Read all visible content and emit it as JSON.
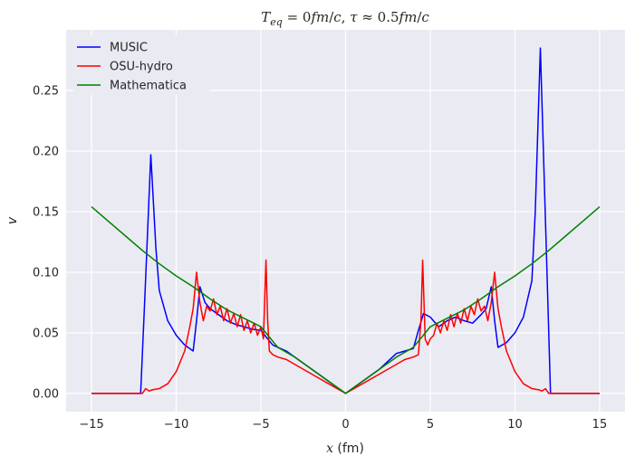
{
  "chart_data": {
    "type": "line",
    "title": "T_eq = 0fm/c, τ ≈ 0.5fm/c",
    "title_parts": {
      "t": "T",
      "sub": "eq",
      "rest": " = 0",
      "fm1": "fm",
      "slash1": "/",
      "c1": "c",
      "comma": ", ",
      "tau": "τ",
      "approx": " ≈ 0.5",
      "fm2": "fm",
      "slash2": "/",
      "c2": "c"
    },
    "xlabel": "x (fm)",
    "xlabel_parts": {
      "var": "x",
      "unit": " (fm)"
    },
    "ylabel": "v",
    "xlim": [
      -16.5,
      16.5
    ],
    "ylim": [
      -0.015,
      0.3
    ],
    "xticks": [
      -15,
      -10,
      -5,
      0,
      5,
      10,
      15
    ],
    "xtick_labels": [
      "−15",
      "−10",
      "−5",
      "0",
      "5",
      "10",
      "15"
    ],
    "yticks": [
      0.0,
      0.05,
      0.1,
      0.15,
      0.2,
      0.25
    ],
    "ytick_labels": [
      "0.00",
      "0.05",
      "0.10",
      "0.15",
      "0.20",
      "0.25"
    ],
    "grid": true,
    "legend_position": "upper-left",
    "series": [
      {
        "name": "MUSIC",
        "color": "#0000ff",
        "x": [
          -15,
          -12.1,
          -11.85,
          -11.5,
          -11.2,
          -11.0,
          -10.5,
          -10.0,
          -9.5,
          -9.0,
          -8.8,
          -8.6,
          -8.3,
          -8.0,
          -7.5,
          -7.0,
          -6.5,
          -6.0,
          -5.5,
          -5.0,
          -4.6,
          -4.3,
          -4.0,
          -3.5,
          -3.0,
          -2.0,
          -1.0,
          0.0,
          1.0,
          2.0,
          3.0,
          3.5,
          4.0,
          4.3,
          4.6,
          5.0,
          5.5,
          6.0,
          6.5,
          7.0,
          7.5,
          8.0,
          8.3,
          8.6,
          8.8,
          9.0,
          9.5,
          10.0,
          10.5,
          11.0,
          11.2,
          11.5,
          11.85,
          12.1,
          15
        ],
        "y": [
          0.0,
          0.0,
          0.08,
          0.197,
          0.12,
          0.085,
          0.06,
          0.048,
          0.04,
          0.035,
          0.06,
          0.088,
          0.075,
          0.07,
          0.065,
          0.06,
          0.057,
          0.055,
          0.053,
          0.052,
          0.045,
          0.04,
          0.038,
          0.035,
          0.03,
          0.02,
          0.01,
          0.0,
          0.01,
          0.02,
          0.033,
          0.035,
          0.037,
          0.052,
          0.066,
          0.063,
          0.055,
          0.06,
          0.063,
          0.06,
          0.058,
          0.065,
          0.07,
          0.088,
          0.06,
          0.038,
          0.042,
          0.05,
          0.063,
          0.093,
          0.15,
          0.285,
          0.12,
          0.0,
          0.0
        ]
      },
      {
        "name": "OSU-hydro",
        "color": "#ff0000",
        "x": [
          -15,
          -12.5,
          -12.0,
          -11.8,
          -11.6,
          -11.4,
          -11.0,
          -10.5,
          -10.0,
          -9.5,
          -9.2,
          -9.0,
          -8.8,
          -8.6,
          -8.4,
          -8.2,
          -8.0,
          -7.8,
          -7.6,
          -7.4,
          -7.2,
          -7.0,
          -6.8,
          -6.6,
          -6.4,
          -6.2,
          -6.0,
          -5.8,
          -5.6,
          -5.4,
          -5.2,
          -5.0,
          -4.85,
          -4.7,
          -4.6,
          -4.5,
          -4.3,
          -4.0,
          -3.5,
          -3.0,
          -2.5,
          -2.0,
          -1.0,
          0.0,
          1.0,
          2.0,
          2.5,
          3.0,
          3.5,
          4.0,
          4.3,
          4.45,
          4.55,
          4.7,
          4.85,
          5.0,
          5.2,
          5.4,
          5.6,
          5.8,
          6.0,
          6.2,
          6.4,
          6.6,
          6.8,
          7.0,
          7.2,
          7.4,
          7.6,
          7.8,
          8.0,
          8.2,
          8.4,
          8.6,
          8.8,
          9.0,
          9.2,
          9.5,
          10.0,
          10.5,
          11.0,
          11.4,
          11.6,
          11.8,
          12.0,
          12.5,
          15
        ],
        "y": [
          0.0,
          0.0,
          0.0,
          0.004,
          0.002,
          0.003,
          0.004,
          0.008,
          0.018,
          0.035,
          0.055,
          0.07,
          0.1,
          0.075,
          0.06,
          0.072,
          0.068,
          0.078,
          0.065,
          0.072,
          0.06,
          0.07,
          0.058,
          0.066,
          0.055,
          0.065,
          0.052,
          0.06,
          0.05,
          0.058,
          0.048,
          0.055,
          0.045,
          0.11,
          0.06,
          0.035,
          0.032,
          0.03,
          0.028,
          0.024,
          0.02,
          0.016,
          0.008,
          0.0,
          0.008,
          0.016,
          0.02,
          0.024,
          0.028,
          0.03,
          0.032,
          0.06,
          0.11,
          0.045,
          0.04,
          0.045,
          0.048,
          0.058,
          0.05,
          0.06,
          0.052,
          0.065,
          0.055,
          0.066,
          0.058,
          0.07,
          0.06,
          0.072,
          0.065,
          0.078,
          0.068,
          0.072,
          0.06,
          0.075,
          0.1,
          0.07,
          0.055,
          0.035,
          0.018,
          0.008,
          0.004,
          0.003,
          0.002,
          0.004,
          0.0,
          0.0,
          0.0
        ]
      },
      {
        "name": "Mathematica",
        "color": "#008000",
        "x": [
          -15,
          -14,
          -13,
          -12,
          -11,
          -10,
          -9,
          -8,
          -7,
          -6,
          -5,
          -4,
          -3,
          -2,
          -1,
          0,
          1,
          2,
          3,
          4,
          5,
          6,
          7,
          8,
          9,
          10,
          11,
          12,
          13,
          14,
          15
        ],
        "y": [
          0.154,
          0.142,
          0.13,
          0.118,
          0.107,
          0.097,
          0.088,
          0.078,
          0.069,
          0.062,
          0.055,
          0.038,
          0.03,
          0.02,
          0.01,
          0.0,
          0.01,
          0.02,
          0.03,
          0.038,
          0.055,
          0.062,
          0.069,
          0.078,
          0.088,
          0.097,
          0.107,
          0.118,
          0.13,
          0.142,
          0.154
        ]
      }
    ]
  }
}
